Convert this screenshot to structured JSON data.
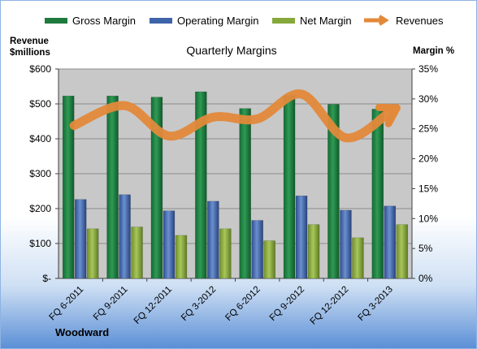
{
  "chart_data": {
    "type": "bar",
    "title": "Quarterly Margins",
    "left_axis_title": [
      "Revenue",
      "$millions"
    ],
    "right_axis_title": "Margin %",
    "footer": "Woodward",
    "categories": [
      "FQ 6-2011",
      "FQ 9-2011",
      "FQ 12-2011",
      "FQ 3-2012",
      "FQ 6-2012",
      "FQ 9-2012",
      "FQ 12-2012",
      "FQ 3-2013"
    ],
    "y_left": {
      "min": 0,
      "max": 600,
      "ticks": [
        "$-",
        "$100",
        "$200",
        "$300",
        "$400",
        "$500",
        "$600"
      ]
    },
    "y_right": {
      "min": 0,
      "max": 35,
      "ticks": [
        "0%",
        "5%",
        "10%",
        "15%",
        "20%",
        "25%",
        "30%",
        "35%"
      ]
    },
    "series": [
      {
        "name": "Gross Margin",
        "type": "bar",
        "axis": "right",
        "color": "#1f7a3f",
        "values": [
          30.5,
          30.5,
          30.3,
          31.2,
          28.4,
          30.6,
          29.1,
          28.3
        ]
      },
      {
        "name": "Operating Margin",
        "type": "bar",
        "axis": "right",
        "color": "#3e63a8",
        "values": [
          13.2,
          14.0,
          11.3,
          12.9,
          9.7,
          13.8,
          11.4,
          12.1
        ]
      },
      {
        "name": "Net Margin",
        "type": "bar",
        "axis": "right",
        "color": "#86a83a",
        "values": [
          8.3,
          8.6,
          7.2,
          8.3,
          6.3,
          9.0,
          6.8,
          9.0
        ]
      },
      {
        "name": "Revenues",
        "type": "line",
        "axis": "left",
        "color": "#e3893a",
        "values": [
          438,
          495,
          408,
          462,
          457,
          528,
          403,
          477
        ]
      }
    ],
    "grid": true,
    "legend_position": "top"
  }
}
